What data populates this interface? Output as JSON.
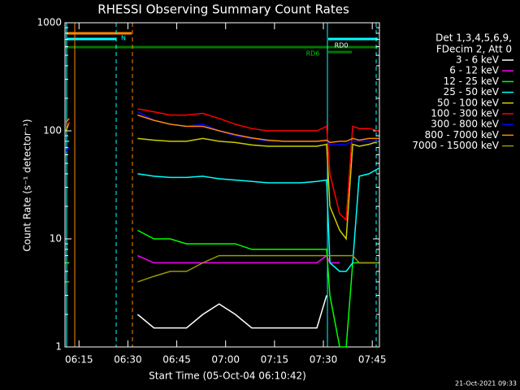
{
  "chart_data": {
    "type": "line",
    "title": "RHESSI Observing Summary Count Rates",
    "x_label": "Start Time (05-Oct-04 06:10:42)",
    "y_label": "Count Rate (s⁻¹ detector⁻¹)",
    "legend_header": [
      "Det 1,3,4,5,6,9,",
      "FDecim 2, Att 0"
    ],
    "timestamp": "21-Oct-2021 09:33",
    "annotations": [
      "N",
      "RD6",
      "RD0"
    ],
    "log_y": true,
    "xlim": [
      10.7,
      107.2
    ],
    "ylim": [
      1,
      1000
    ],
    "xticks": [
      {
        "value": 15,
        "label": "06:15"
      },
      {
        "value": 30,
        "label": "06:30"
      },
      {
        "value": 45,
        "label": "06:45"
      },
      {
        "value": 60,
        "label": "07:00"
      },
      {
        "value": 75,
        "label": "07:15"
      },
      {
        "value": 90,
        "label": "07:30"
      },
      {
        "value": 105,
        "label": "07:45"
      }
    ],
    "yticks": [
      1,
      10,
      100,
      1000
    ],
    "x": [
      11,
      12,
      20,
      33,
      38,
      43,
      48,
      53,
      58,
      63,
      68,
      73,
      78,
      83,
      88,
      91,
      92,
      95,
      97,
      99,
      101,
      104,
      107
    ],
    "series": [
      {
        "name": "3 - 6 keV",
        "color": "#ffffff",
        "values": [
          null,
          null,
          null,
          2,
          1.5,
          1.5,
          1.5,
          2,
          2.5,
          2,
          1.5,
          1.5,
          1.5,
          1.5,
          1.5,
          3,
          null,
          null,
          null,
          null,
          null,
          null,
          null
        ]
      },
      {
        "name": "6 - 12 keV",
        "color": "#ff00ff",
        "values": [
          6,
          6,
          null,
          7,
          6,
          6,
          6,
          6,
          6,
          6,
          6,
          6,
          6,
          6,
          6,
          7,
          6,
          6,
          null,
          null,
          6,
          6,
          6
        ]
      },
      {
        "name": "12 - 25 keV",
        "color": "#00ff00",
        "values": [
          6,
          6,
          null,
          12,
          10,
          10,
          9,
          9,
          9,
          9,
          8,
          8,
          8,
          8,
          8,
          8,
          3,
          1,
          1,
          6,
          6,
          6,
          6
        ]
      },
      {
        "name": "25 - 50 keV",
        "color": "#00ffff",
        "values": [
          80,
          80,
          null,
          40,
          38,
          37,
          37,
          38,
          36,
          35,
          34,
          33,
          33,
          33,
          34,
          35,
          6,
          5,
          5,
          6,
          38,
          40,
          45
        ]
      },
      {
        "name": "50 - 100 keV",
        "color": "#cccc00",
        "values": [
          100,
          120,
          null,
          85,
          82,
          80,
          80,
          85,
          80,
          78,
          74,
          72,
          72,
          72,
          72,
          75,
          20,
          12,
          10,
          75,
          72,
          75,
          80
        ]
      },
      {
        "name": "100 - 300 keV",
        "color": "#ff0000",
        "values": [
          110,
          120,
          null,
          160,
          150,
          140,
          140,
          145,
          130,
          115,
          105,
          100,
          100,
          100,
          100,
          110,
          40,
          17,
          15,
          110,
          105,
          105,
          100
        ]
      },
      {
        "name": "300 - 800 keV",
        "color": "#0000ff",
        "values": [
          65,
          70,
          null,
          150,
          125,
          115,
          110,
          115,
          100,
          90,
          85,
          80,
          80,
          80,
          80,
          80,
          75,
          75,
          75,
          80,
          80,
          80,
          80
        ]
      },
      {
        "name": "800 - 7000 keV",
        "color": "#ff8800",
        "values": [
          120,
          130,
          null,
          140,
          125,
          115,
          110,
          110,
          100,
          92,
          86,
          82,
          80,
          80,
          80,
          82,
          78,
          80,
          80,
          85,
          82,
          85,
          85
        ]
      },
      {
        "name": "7000 - 15000 keV",
        "color": "#999900",
        "values": [
          4,
          4,
          null,
          4,
          4.5,
          5,
          5,
          6,
          7,
          7,
          7,
          7,
          7,
          7,
          7,
          7,
          7,
          7,
          7,
          7,
          6,
          6,
          6
        ]
      }
    ]
  }
}
